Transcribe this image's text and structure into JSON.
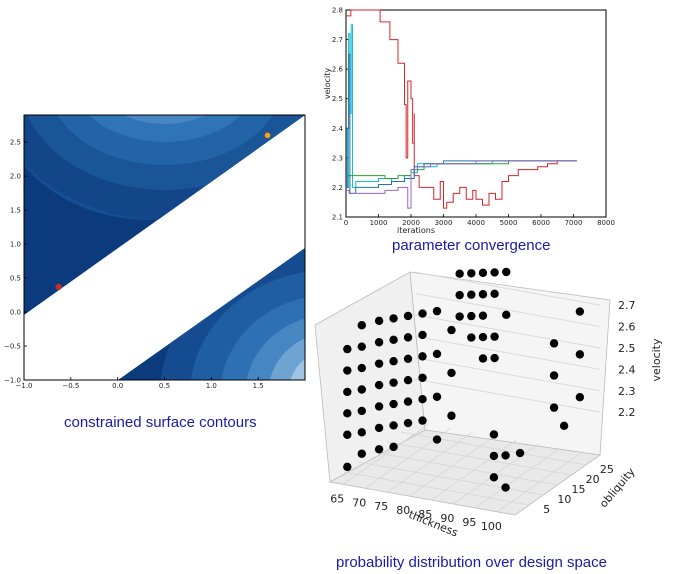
{
  "captions": {
    "contour": "constrained surface contours",
    "convergence": "parameter convergence",
    "distribution": "probability distribution over design space"
  },
  "colors": {
    "caption": "#1a1aa8",
    "contour_dark": "#0b3b7d",
    "contour_light": "#e8f1fb",
    "series": [
      "#d62728",
      "#17becf",
      "#2ca02c",
      "#1f77b4",
      "#9467bd"
    ]
  },
  "chart_data": [
    {
      "type": "heatmap",
      "title": "constrained surface contours",
      "xlim": [
        -1.0,
        2.0
      ],
      "ylim": [
        -1.0,
        2.9
      ],
      "xticks": [
        "−1.0",
        "−0.5",
        "0.0",
        "0.5",
        "1.0",
        "1.5"
      ],
      "yticks": [
        "−1.0",
        "−0.5",
        "0.0",
        "0.5",
        "1.0",
        "1.5",
        "2.0",
        "2.5"
      ],
      "points": [
        {
          "x": -0.63,
          "y": 0.37,
          "color": "#d62728"
        },
        {
          "x": 1.6,
          "y": 2.6,
          "color": "#f4a11c"
        }
      ]
    },
    {
      "type": "line",
      "title": "parameter convergence",
      "xlabel": "iterations",
      "ylabel": "velocity",
      "xlim": [
        0,
        8000
      ],
      "ylim": [
        2.1,
        2.8
      ],
      "xticks": [
        "0",
        "1000",
        "2000",
        "3000",
        "4000",
        "5000",
        "6000",
        "7000",
        "8000"
      ],
      "yticks": [
        "2.1",
        "2.2",
        "2.3",
        "2.4",
        "2.5",
        "2.6",
        "2.7",
        "2.8"
      ],
      "series": [
        {
          "color": "#d62728",
          "x": [
            0,
            150,
            150,
            1050,
            1050,
            1350,
            1600,
            1800,
            1850,
            1900,
            2000,
            2050,
            2100,
            2100,
            2250,
            2250,
            2500,
            2700,
            2900,
            3000,
            3100,
            3300,
            3500,
            3700,
            3900,
            4000,
            4200,
            4400,
            4600,
            4800,
            5000,
            5300,
            5600,
            5900,
            6200,
            6500,
            6800,
            7100
          ],
          "y": [
            2.78,
            2.78,
            2.8,
            2.8,
            2.76,
            2.7,
            2.62,
            2.48,
            2.3,
            2.56,
            2.5,
            2.35,
            2.45,
            2.24,
            2.24,
            2.2,
            2.2,
            2.16,
            2.22,
            2.13,
            2.15,
            2.18,
            2.2,
            2.16,
            2.19,
            2.16,
            2.14,
            2.18,
            2.16,
            2.22,
            2.24,
            2.26,
            2.26,
            2.27,
            2.28,
            2.29,
            2.29,
            2.29
          ]
        },
        {
          "color": "#17becf",
          "x": [
            0,
            80,
            120,
            160,
            200,
            300,
            600,
            1000,
            1400,
            1800,
            2000,
            2200,
            2400,
            2800,
            3500,
            4500,
            5500,
            6500,
            7100
          ],
          "y": [
            2.2,
            2.72,
            2.45,
            2.75,
            2.2,
            2.22,
            2.22,
            2.23,
            2.22,
            2.24,
            2.25,
            2.28,
            2.27,
            2.28,
            2.28,
            2.29,
            2.29,
            2.29,
            2.29
          ]
        },
        {
          "color": "#2ca02c",
          "x": [
            0,
            200,
            400,
            800,
            1200,
            1600,
            2000,
            2400,
            3000,
            4000,
            5000,
            6000,
            7100
          ],
          "y": [
            2.24,
            2.24,
            2.24,
            2.24,
            2.23,
            2.24,
            2.26,
            2.28,
            2.28,
            2.28,
            2.29,
            2.29,
            2.29
          ]
        },
        {
          "color": "#1f77b4",
          "x": [
            0,
            40,
            80,
            120,
            300,
            600,
            1000,
            1400,
            1800,
            2100,
            2400,
            3000,
            4000,
            5000,
            6000,
            7100
          ],
          "y": [
            2.2,
            2.4,
            2.65,
            2.18,
            2.2,
            2.2,
            2.21,
            2.22,
            2.23,
            2.27,
            2.28,
            2.29,
            2.29,
            2.29,
            2.29,
            2.29
          ]
        },
        {
          "color": "#9467bd",
          "x": [
            0,
            100,
            400,
            800,
            1200,
            1600,
            1900,
            2000,
            2200,
            2600,
            3000,
            4000,
            5000,
            6000,
            7100
          ],
          "y": [
            2.19,
            2.18,
            2.18,
            2.18,
            2.19,
            2.2,
            2.13,
            2.26,
            2.27,
            2.28,
            2.28,
            2.29,
            2.29,
            2.29,
            2.29
          ]
        }
      ]
    },
    {
      "type": "scatter",
      "title": "probability distribution over design space",
      "xlabel": "thickness",
      "ylabel": "obliquity",
      "zlabel": "velocity",
      "xticks": [
        "65",
        "70",
        "75",
        "80",
        "85",
        "90",
        "95",
        "100"
      ],
      "yticks": [
        "5",
        "10",
        "15",
        "20",
        "25"
      ],
      "zticks": [
        "2.2",
        "2.3",
        "2.4",
        "2.5",
        "2.6",
        "2.7"
      ],
      "points": [
        {
          "x": 64,
          "y": 3,
          "z": 2.6
        },
        {
          "x": 64,
          "y": 3,
          "z": 2.5
        },
        {
          "x": 64,
          "y": 3,
          "z": 2.4
        },
        {
          "x": 64,
          "y": 3,
          "z": 2.3
        },
        {
          "x": 64,
          "y": 3,
          "z": 2.2
        },
        {
          "x": 64,
          "y": 3,
          "z": 2.05
        },
        {
          "x": 66,
          "y": 5,
          "z": 2.7
        },
        {
          "x": 66,
          "y": 5,
          "z": 2.6
        },
        {
          "x": 66,
          "y": 5,
          "z": 2.5
        },
        {
          "x": 66,
          "y": 5,
          "z": 2.4
        },
        {
          "x": 66,
          "y": 5,
          "z": 2.3
        },
        {
          "x": 66,
          "y": 5,
          "z": 2.2
        },
        {
          "x": 66,
          "y": 5,
          "z": 2.1
        },
        {
          "x": 68,
          "y": 8,
          "z": 2.7
        },
        {
          "x": 68,
          "y": 8,
          "z": 2.6
        },
        {
          "x": 68,
          "y": 8,
          "z": 2.5
        },
        {
          "x": 68,
          "y": 8,
          "z": 2.4
        },
        {
          "x": 68,
          "y": 8,
          "z": 2.3
        },
        {
          "x": 68,
          "y": 8,
          "z": 2.2
        },
        {
          "x": 68,
          "y": 8,
          "z": 2.1
        },
        {
          "x": 70,
          "y": 10,
          "z": 2.7
        },
        {
          "x": 70,
          "y": 10,
          "z": 2.6
        },
        {
          "x": 70,
          "y": 10,
          "z": 2.5
        },
        {
          "x": 70,
          "y": 10,
          "z": 2.4
        },
        {
          "x": 70,
          "y": 10,
          "z": 2.3
        },
        {
          "x": 70,
          "y": 10,
          "z": 2.2
        },
        {
          "x": 70,
          "y": 10,
          "z": 2.1
        },
        {
          "x": 72,
          "y": 12,
          "z": 2.7
        },
        {
          "x": 72,
          "y": 12,
          "z": 2.6
        },
        {
          "x": 72,
          "y": 12,
          "z": 2.5
        },
        {
          "x": 72,
          "y": 12,
          "z": 2.4
        },
        {
          "x": 72,
          "y": 12,
          "z": 2.3
        },
        {
          "x": 72,
          "y": 12,
          "z": 2.2
        },
        {
          "x": 74,
          "y": 14,
          "z": 2.7
        },
        {
          "x": 74,
          "y": 14,
          "z": 2.6
        },
        {
          "x": 74,
          "y": 14,
          "z": 2.5
        },
        {
          "x": 74,
          "y": 14,
          "z": 2.4
        },
        {
          "x": 74,
          "y": 14,
          "z": 2.3
        },
        {
          "x": 74,
          "y": 14,
          "z": 2.2
        },
        {
          "x": 76,
          "y": 16,
          "z": 2.7
        },
        {
          "x": 76,
          "y": 16,
          "z": 2.5
        },
        {
          "x": 76,
          "y": 16,
          "z": 2.3
        },
        {
          "x": 76,
          "y": 16,
          "z": 2.1
        },
        {
          "x": 78,
          "y": 18,
          "z": 2.6
        },
        {
          "x": 78,
          "y": 18,
          "z": 2.4
        },
        {
          "x": 78,
          "y": 18,
          "z": 2.2
        },
        {
          "x": 76,
          "y": 24,
          "z": 2.8
        },
        {
          "x": 76,
          "y": 24,
          "z": 2.7
        },
        {
          "x": 76,
          "y": 24,
          "z": 2.6
        },
        {
          "x": 78,
          "y": 25,
          "z": 2.8
        },
        {
          "x": 78,
          "y": 25,
          "z": 2.7
        },
        {
          "x": 78,
          "y": 25,
          "z": 2.6
        },
        {
          "x": 78,
          "y": 25,
          "z": 2.5
        },
        {
          "x": 80,
          "y": 26,
          "z": 2.8
        },
        {
          "x": 80,
          "y": 26,
          "z": 2.7
        },
        {
          "x": 80,
          "y": 26,
          "z": 2.6
        },
        {
          "x": 80,
          "y": 26,
          "z": 2.5
        },
        {
          "x": 80,
          "y": 26,
          "z": 2.4
        },
        {
          "x": 82,
          "y": 27,
          "z": 2.8
        },
        {
          "x": 82,
          "y": 27,
          "z": 2.7
        },
        {
          "x": 82,
          "y": 27,
          "z": 2.5
        },
        {
          "x": 82,
          "y": 27,
          "z": 2.4
        },
        {
          "x": 84,
          "y": 28,
          "z": 2.8
        },
        {
          "x": 84,
          "y": 28,
          "z": 2.6
        },
        {
          "x": 96,
          "y": 5,
          "z": 2.3
        },
        {
          "x": 96,
          "y": 5,
          "z": 2.2
        },
        {
          "x": 96,
          "y": 5,
          "z": 2.1
        },
        {
          "x": 98,
          "y": 6,
          "z": 2.2
        },
        {
          "x": 98,
          "y": 6,
          "z": 2.05
        },
        {
          "x": 100,
          "y": 8,
          "z": 2.2
        },
        {
          "x": 100,
          "y": 20,
          "z": 2.6
        },
        {
          "x": 100,
          "y": 20,
          "z": 2.45
        },
        {
          "x": 100,
          "y": 20,
          "z": 2.3
        },
        {
          "x": 101,
          "y": 22,
          "z": 2.2
        },
        {
          "x": 102,
          "y": 26,
          "z": 2.7
        },
        {
          "x": 102,
          "y": 26,
          "z": 2.5
        },
        {
          "x": 102,
          "y": 26,
          "z": 2.3
        }
      ]
    }
  ]
}
